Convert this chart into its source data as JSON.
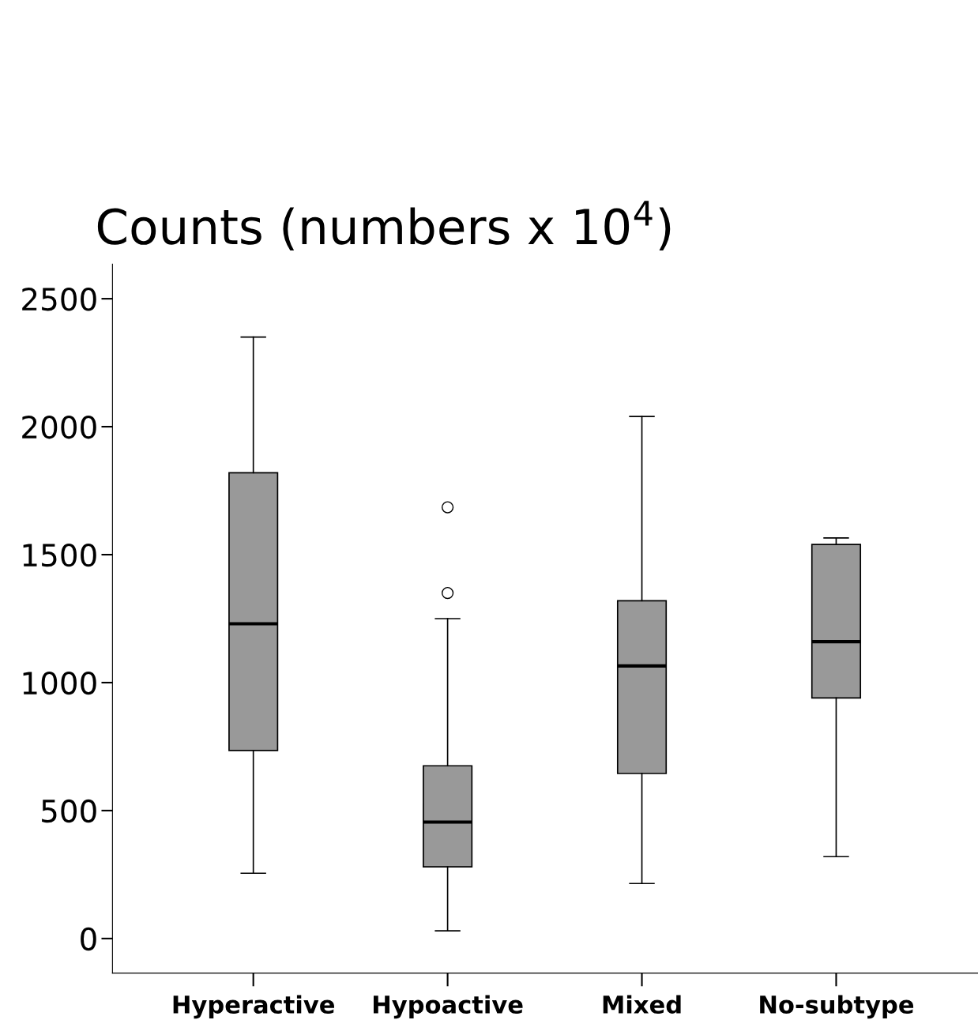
{
  "chart_data": {
    "type": "box",
    "title": "Counts (numbers x 10$^{4}$)",
    "categories": [
      "Hyperactive",
      "Hypoactive",
      "Mixed",
      "No-subtype"
    ],
    "boxes": [
      {
        "low": 255,
        "q1": 735,
        "median": 1230,
        "q3": 1820,
        "high": 2350
      },
      {
        "low": 30,
        "q1": 280,
        "median": 455,
        "q3": 675,
        "high": 1250,
        "outliers": [
          1350,
          1685
        ]
      },
      {
        "low": 215,
        "q1": 645,
        "median": 1065,
        "q3": 1320,
        "high": 2040
      },
      {
        "low": 320,
        "q1": 940,
        "median": 1160,
        "q3": 1540,
        "high": 1565
      }
    ],
    "color": "#999999",
    "ylim": [
      -135,
      2635
    ],
    "yticks": [
      0,
      500,
      1000,
      1500,
      2000,
      2500
    ],
    "grid": false,
    "legend": false
  }
}
